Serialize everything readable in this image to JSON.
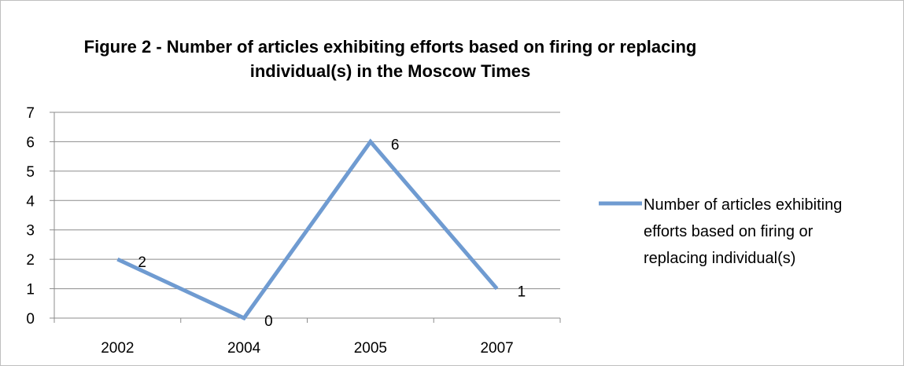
{
  "chart_data": {
    "type": "line",
    "title_lines": [
      "Figure 2 - Number of articles exhibiting efforts based on firing or replacing",
      "individual(s) in the Moscow Times"
    ],
    "categories": [
      "2002",
      "2004",
      "2005",
      "2007"
    ],
    "series": [
      {
        "name": "Number of articles exhibiting efforts based on firing or replacing individual(s)",
        "name_lines": [
          "Number of articles exhibiting",
          "efforts based on firing or",
          "replacing individual(s)"
        ],
        "values": [
          2,
          0,
          6,
          1
        ],
        "data_labels": [
          "2",
          "0",
          "6",
          "1"
        ],
        "color": "#6f9bd1"
      }
    ],
    "y_ticks": [
      "0",
      "1",
      "2",
      "3",
      "4",
      "5",
      "6",
      "7"
    ],
    "ylim": [
      0,
      7
    ],
    "grid": true,
    "legend_position": "right",
    "gridline_color": "#8c8c8c"
  }
}
